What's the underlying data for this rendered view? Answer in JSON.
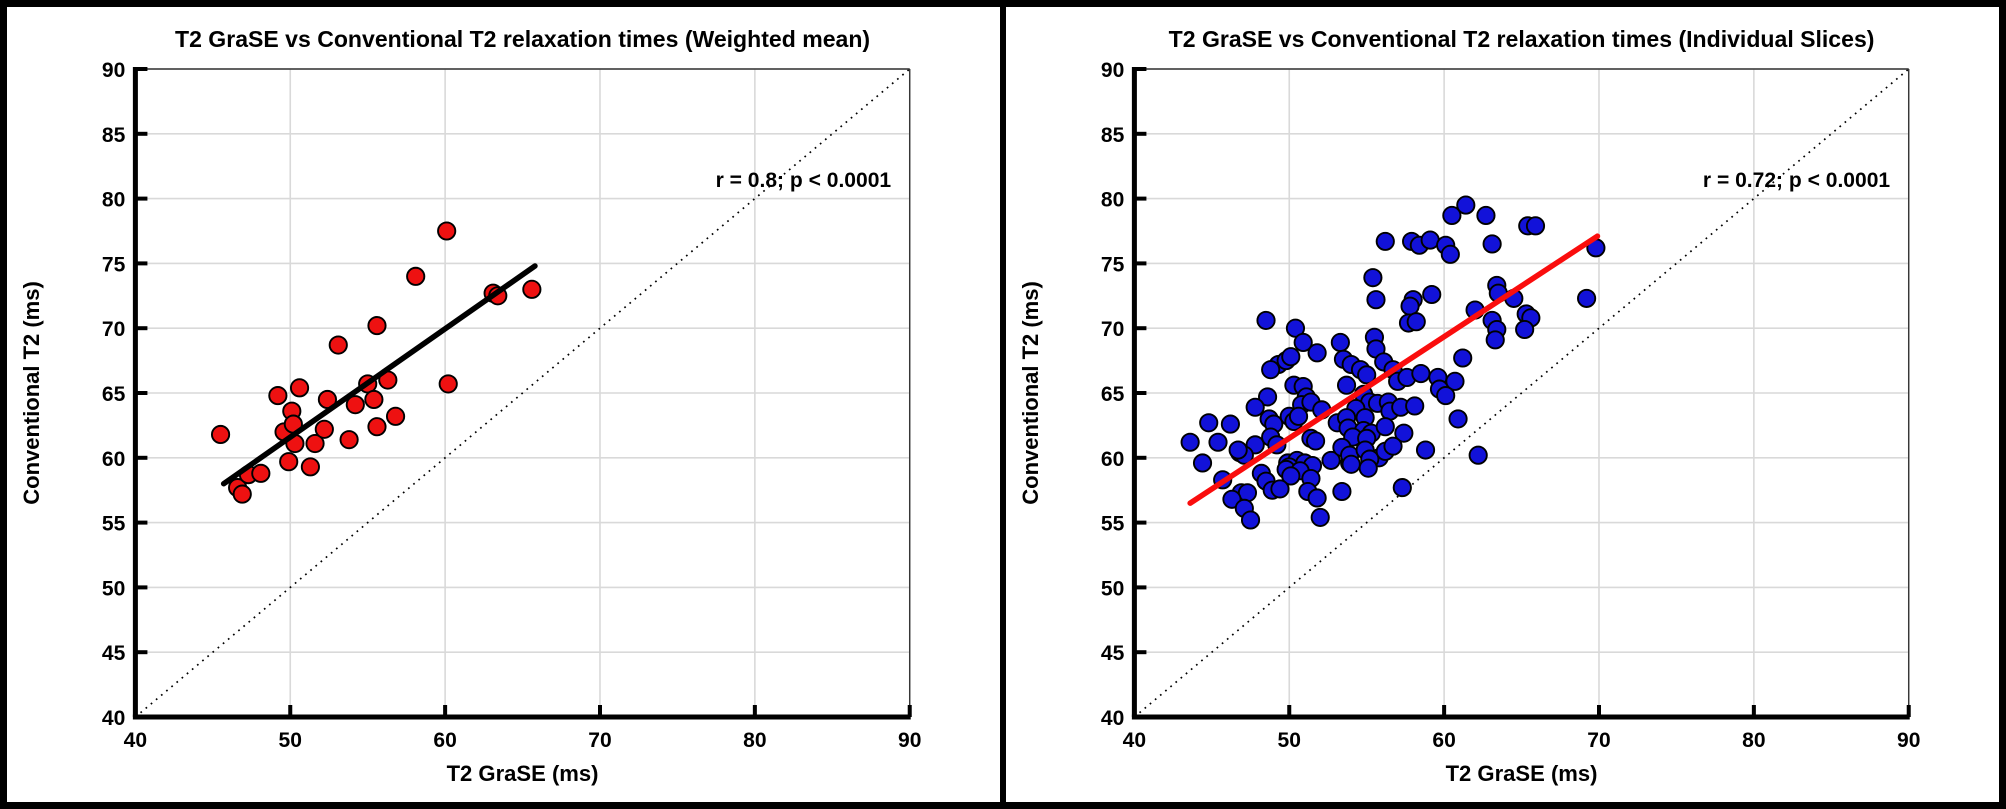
{
  "figure": {
    "frame_color": "#000000",
    "background": "#ffffff",
    "grid_color": "#d9d9d9",
    "axis_color": "#000000"
  },
  "chart_data": [
    {
      "type": "scatter",
      "title": "T2 GraSE vs Conventional T2 relaxation times (Weighted mean)",
      "xlabel": "T2 GraSE (ms)",
      "ylabel": "Conventional T2 (ms)",
      "annotation": "r = 0.8; p < 0.0001",
      "xlim": [
        40,
        90
      ],
      "ylim": [
        40,
        90
      ],
      "x_ticks": [
        40,
        50,
        60,
        70,
        80,
        90
      ],
      "y_ticks": [
        40,
        45,
        50,
        55,
        60,
        65,
        70,
        75,
        80,
        85,
        90
      ],
      "grid": true,
      "legend": "none",
      "marker_color": "#ee1111",
      "marker_edge_color": "#000000",
      "fit_line_color": "#000000",
      "identity_line_color": "#000000",
      "fit_line": [
        [
          45.7,
          58.0
        ],
        [
          65.8,
          74.8
        ]
      ],
      "identity_line": [
        [
          40,
          40
        ],
        [
          90,
          90
        ]
      ],
      "points": [
        [
          45.5,
          61.8
        ],
        [
          46.6,
          57.7
        ],
        [
          46.9,
          57.2
        ],
        [
          47.3,
          58.7
        ],
        [
          48.1,
          58.8
        ],
        [
          49.2,
          64.8
        ],
        [
          49.6,
          62.0
        ],
        [
          49.9,
          59.7
        ],
        [
          50.1,
          63.6
        ],
        [
          50.2,
          62.6
        ],
        [
          50.3,
          61.1
        ],
        [
          50.6,
          65.4
        ],
        [
          51.3,
          59.3
        ],
        [
          51.6,
          61.1
        ],
        [
          52.2,
          62.2
        ],
        [
          52.4,
          64.5
        ],
        [
          53.1,
          68.7
        ],
        [
          53.8,
          61.4
        ],
        [
          54.2,
          64.1
        ],
        [
          55.0,
          65.7
        ],
        [
          55.4,
          64.5
        ],
        [
          55.6,
          62.4
        ],
        [
          55.6,
          70.2
        ],
        [
          56.3,
          66.0
        ],
        [
          56.8,
          63.2
        ],
        [
          58.1,
          74.0
        ],
        [
          60.1,
          77.5
        ],
        [
          60.2,
          65.7
        ],
        [
          63.1,
          72.7
        ],
        [
          63.4,
          72.5
        ],
        [
          65.6,
          73.0
        ]
      ]
    },
    {
      "type": "scatter",
      "title": "T2 GraSE vs Conventional T2 relaxation times (Individual Slices)",
      "xlabel": "T2 GraSE (ms)",
      "ylabel": "Conventional T2 (ms)",
      "annotation": "r = 0.72; p < 0.0001",
      "xlim": [
        40,
        90
      ],
      "ylim": [
        40,
        90
      ],
      "x_ticks": [
        40,
        50,
        60,
        70,
        80,
        90
      ],
      "y_ticks": [
        40,
        45,
        50,
        55,
        60,
        65,
        70,
        75,
        80,
        85,
        90
      ],
      "grid": true,
      "legend": "none",
      "marker_color": "#1212d9",
      "marker_edge_color": "#000000",
      "fit_line_color": "#fa0d0d",
      "identity_line_color": "#000000",
      "fit_line": [
        [
          43.6,
          56.5
        ],
        [
          69.9,
          77.1
        ]
      ],
      "identity_line": [
        [
          40,
          40
        ],
        [
          90,
          90
        ]
      ],
      "points": [
        [
          61.4,
          79.5
        ],
        [
          60.5,
          78.7
        ],
        [
          62.7,
          78.7
        ],
        [
          65.4,
          77.9
        ],
        [
          65.9,
          77.9
        ],
        [
          56.2,
          76.7
        ],
        [
          57.9,
          76.7
        ],
        [
          58.4,
          76.4
        ],
        [
          59.1,
          76.8
        ],
        [
          60.1,
          76.4
        ],
        [
          60.4,
          75.7
        ],
        [
          63.1,
          76.5
        ],
        [
          69.8,
          76.2
        ],
        [
          55.4,
          73.9
        ],
        [
          63.4,
          73.3
        ],
        [
          63.5,
          72.7
        ],
        [
          64.5,
          72.3
        ],
        [
          69.2,
          72.3
        ],
        [
          55.6,
          72.2
        ],
        [
          58.0,
          72.2
        ],
        [
          59.2,
          72.6
        ],
        [
          62.0,
          71.4
        ],
        [
          57.8,
          71.7
        ],
        [
          65.3,
          71.1
        ],
        [
          65.6,
          70.8
        ],
        [
          65.2,
          69.9
        ],
        [
          57.7,
          70.4
        ],
        [
          58.2,
          70.5
        ],
        [
          63.1,
          70.6
        ],
        [
          63.4,
          69.9
        ],
        [
          63.3,
          69.1
        ],
        [
          48.5,
          70.6
        ],
        [
          50.4,
          70.0
        ],
        [
          50.9,
          68.9
        ],
        [
          51.8,
          68.1
        ],
        [
          53.3,
          68.9
        ],
        [
          55.5,
          69.3
        ],
        [
          55.6,
          68.4
        ],
        [
          61.2,
          67.7
        ],
        [
          49.3,
          67.2
        ],
        [
          49.8,
          67.5
        ],
        [
          50.1,
          67.8
        ],
        [
          48.8,
          66.8
        ],
        [
          53.5,
          67.6
        ],
        [
          54.0,
          67.2
        ],
        [
          54.6,
          66.8
        ],
        [
          55.0,
          66.4
        ],
        [
          56.1,
          67.4
        ],
        [
          56.7,
          66.8
        ],
        [
          57.0,
          65.9
        ],
        [
          57.6,
          66.2
        ],
        [
          58.5,
          66.5
        ],
        [
          59.6,
          66.2
        ],
        [
          59.7,
          65.3
        ],
        [
          60.7,
          65.9
        ],
        [
          60.1,
          64.8
        ],
        [
          50.3,
          65.6
        ],
        [
          50.9,
          65.5
        ],
        [
          51.1,
          64.7
        ],
        [
          50.8,
          64.1
        ],
        [
          51.4,
          64.3
        ],
        [
          48.6,
          64.7
        ],
        [
          53.7,
          65.6
        ],
        [
          54.8,
          64.9
        ],
        [
          55.2,
          64.3
        ],
        [
          54.3,
          63.8
        ],
        [
          55.7,
          64.2
        ],
        [
          56.4,
          64.3
        ],
        [
          56.5,
          63.6
        ],
        [
          57.2,
          63.9
        ],
        [
          58.1,
          64.0
        ],
        [
          47.8,
          63.9
        ],
        [
          44.8,
          62.7
        ],
        [
          46.2,
          62.6
        ],
        [
          43.6,
          61.2
        ],
        [
          45.4,
          61.2
        ],
        [
          47.8,
          61.0
        ],
        [
          48.7,
          63.0
        ],
        [
          49.0,
          62.6
        ],
        [
          48.8,
          61.6
        ],
        [
          49.2,
          61.0
        ],
        [
          50.0,
          63.2
        ],
        [
          50.3,
          62.8
        ],
        [
          50.6,
          63.2
        ],
        [
          51.4,
          61.5
        ],
        [
          51.7,
          61.3
        ],
        [
          52.1,
          63.7
        ],
        [
          53.1,
          62.7
        ],
        [
          53.7,
          63.1
        ],
        [
          54.9,
          63.1
        ],
        [
          53.8,
          62.3
        ],
        [
          54.8,
          62.1
        ],
        [
          55.3,
          61.9
        ],
        [
          56.2,
          62.4
        ],
        [
          54.1,
          61.6
        ],
        [
          55.0,
          61.5
        ],
        [
          57.4,
          61.9
        ],
        [
          60.9,
          63.0
        ],
        [
          62.2,
          60.2
        ],
        [
          58.8,
          60.6
        ],
        [
          44.4,
          59.6
        ],
        [
          46.8,
          60.4
        ],
        [
          47.1,
          60.2
        ],
        [
          46.7,
          60.6
        ],
        [
          49.9,
          59.6
        ],
        [
          50.5,
          59.8
        ],
        [
          51.0,
          59.6
        ],
        [
          51.5,
          59.4
        ],
        [
          50.0,
          59.3
        ],
        [
          49.8,
          59.1
        ],
        [
          50.7,
          59.0
        ],
        [
          52.7,
          59.8
        ],
        [
          53.9,
          59.6
        ],
        [
          55.8,
          60.0
        ],
        [
          53.4,
          60.8
        ],
        [
          53.9,
          60.2
        ],
        [
          54.9,
          60.6
        ],
        [
          55.2,
          59.9
        ],
        [
          56.2,
          60.5
        ],
        [
          56.7,
          60.9
        ],
        [
          55.1,
          59.2
        ],
        [
          54.0,
          59.5
        ],
        [
          50.1,
          58.6
        ],
        [
          48.2,
          58.8
        ],
        [
          48.5,
          58.2
        ],
        [
          48.9,
          57.5
        ],
        [
          49.4,
          57.6
        ],
        [
          46.9,
          57.3
        ],
        [
          47.3,
          57.3
        ],
        [
          46.3,
          56.8
        ],
        [
          47.1,
          56.1
        ],
        [
          47.5,
          55.2
        ],
        [
          52.0,
          55.4
        ],
        [
          51.4,
          58.4
        ],
        [
          51.2,
          57.4
        ],
        [
          51.8,
          56.9
        ],
        [
          53.4,
          57.4
        ],
        [
          57.3,
          57.7
        ],
        [
          45.7,
          58.3
        ]
      ]
    }
  ]
}
